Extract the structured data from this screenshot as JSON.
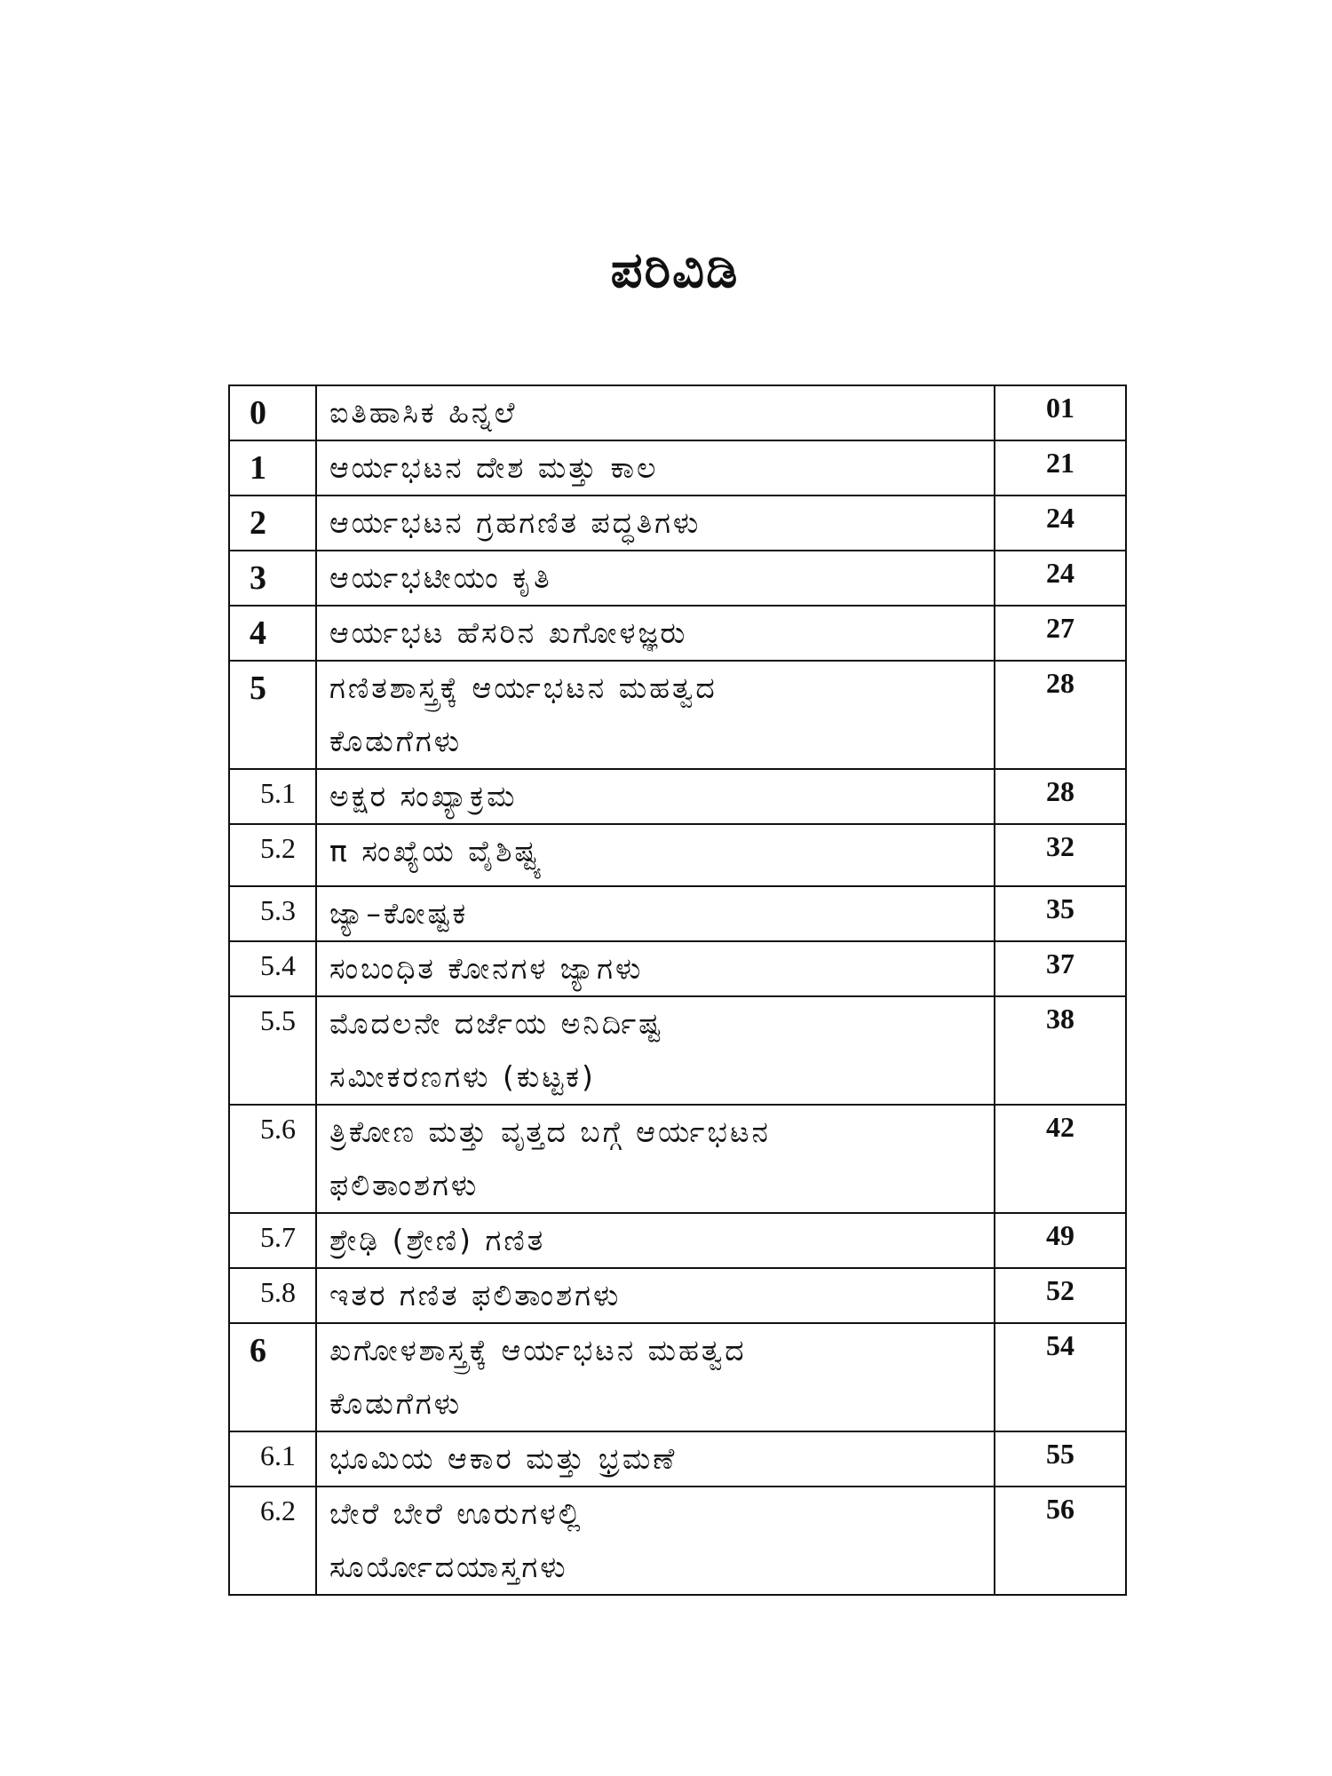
{
  "title": "ಪರಿವಿಡಿ",
  "rows": [
    {
      "num": "0",
      "level": "main",
      "lines": [
        "ಐತಿಹಾಸಿಕ ಹಿನ್ನಲೆ"
      ],
      "page": "01"
    },
    {
      "num": "1",
      "level": "main",
      "lines": [
        "ಆರ್ಯಭಟನ ದೇಶ ಮತ್ತು ಕಾಲ"
      ],
      "page": "21"
    },
    {
      "num": "2",
      "level": "main",
      "lines": [
        "ಆರ್ಯಭಟನ ಗ್ರಹಗಣಿತ ಪದ್ಧತಿಗಳು"
      ],
      "page": "24"
    },
    {
      "num": "3",
      "level": "main",
      "lines": [
        "ಆರ್ಯಭಟೀಯಂ ಕೃತಿ"
      ],
      "page": "24"
    },
    {
      "num": "4",
      "level": "main",
      "lines": [
        "ಆರ್ಯಭಟ ಹೆಸರಿನ ಖಗೋಳಜ್ಞರು"
      ],
      "page": "27"
    },
    {
      "num": "5",
      "level": "main",
      "lines": [
        "ಗಣಿತಶಾಸ್ತ್ರಕ್ಕೆ ಆರ್ಯಭಟನ ಮಹತ್ವದ",
        "ಕೊಡುಗೆಗಳು"
      ],
      "page": "28"
    },
    {
      "num": "5.1",
      "level": "sub",
      "lines": [
        "ಅಕ್ಷರ ಸಂಖ್ಯಾಕ್ರಮ"
      ],
      "page": "28"
    },
    {
      "num": "5.2",
      "level": "sub",
      "lines": [
        "π ಸಂಖ್ಯೆಯ ವೈಶಿಷ್ಟ್ಯ"
      ],
      "page": "32"
    },
    {
      "num": "5.3",
      "level": "sub",
      "lines": [
        "ಜ್ಯಾ–ಕೋಷ್ಟಕ"
      ],
      "page": "35"
    },
    {
      "num": "5.4",
      "level": "sub",
      "lines": [
        "ಸಂಬಂಧಿತ ಕೋನಗಳ ಜ್ಯಾಗಳು"
      ],
      "page": "37"
    },
    {
      "num": "5.5",
      "level": "sub",
      "lines": [
        "ಮೊದಲನೇ ದರ್ಜೆಯ ಅನಿರ್ದಿಷ್ಟ",
        "ಸಮೀಕರಣಗಳು (ಕುಟ್ಟಕ)"
      ],
      "page": "38"
    },
    {
      "num": "5.6",
      "level": "sub",
      "lines": [
        "ತ್ರಿಕೋಣ ಮತ್ತು ವೃತ್ತದ ಬಗ್ಗೆ ಆರ್ಯಭಟನ",
        "ಫಲಿತಾಂಶಗಳು"
      ],
      "page": "42"
    },
    {
      "num": "5.7",
      "level": "sub",
      "lines": [
        "ಶ್ರೇಢಿ (ಶ್ರೇಣಿ) ಗಣಿತ"
      ],
      "page": "49"
    },
    {
      "num": "5.8",
      "level": "sub",
      "lines": [
        "ಇತರ ಗಣಿತ ಫಲಿತಾಂಶಗಳು"
      ],
      "page": "52"
    },
    {
      "num": "6",
      "level": "main",
      "lines": [
        "ಖಗೋಳಶಾಸ್ತ್ರಕ್ಕೆ ಆರ್ಯಭಟನ ಮಹತ್ವದ",
        "ಕೊಡುಗೆಗಳು"
      ],
      "page": "54"
    },
    {
      "num": "6.1",
      "level": "sub",
      "lines": [
        "ಭೂಮಿಯ ಆಕಾರ ಮತ್ತು ಭ್ರಮಣೆ"
      ],
      "page": "55"
    },
    {
      "num": "6.2",
      "level": "sub",
      "lines": [
        "ಬೇರೆ ಬೇರೆ ಊರುಗಳಲ್ಲಿ",
        "ಸೂರ್ಯೋದಯಾಸ್ತಗಳು"
      ],
      "page": "56"
    }
  ]
}
